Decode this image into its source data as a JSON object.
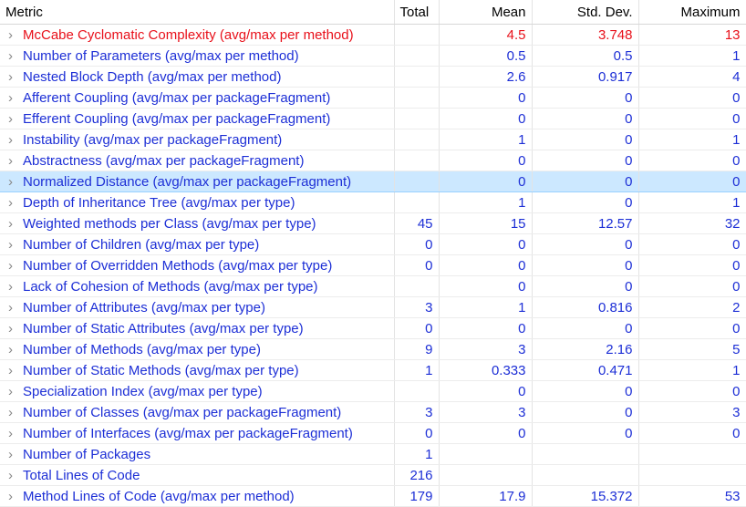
{
  "columns": [
    "Metric",
    "Total",
    "Mean",
    "Std. Dev.",
    "Maximum"
  ],
  "selected_row": 7,
  "rows": [
    {
      "metric": "McCabe Cyclomatic Complexity (avg/max per method)",
      "mean": 4.5,
      "std": 3.748,
      "max": 13,
      "color": "#e8101a"
    },
    {
      "metric": "Number of Parameters (avg/max per method)",
      "mean": 0.5,
      "std": 0.5,
      "max": 1
    },
    {
      "metric": "Nested Block Depth (avg/max per method)",
      "mean": 2.6,
      "std": 0.917,
      "max": 4
    },
    {
      "metric": "Afferent Coupling (avg/max per packageFragment)",
      "mean": 0,
      "std": 0,
      "max": 0
    },
    {
      "metric": "Efferent Coupling (avg/max per packageFragment)",
      "mean": 0,
      "std": 0,
      "max": 0
    },
    {
      "metric": "Instability (avg/max per packageFragment)",
      "mean": 1,
      "std": 0,
      "max": 1
    },
    {
      "metric": "Abstractness (avg/max per packageFragment)",
      "mean": 0,
      "std": 0,
      "max": 0
    },
    {
      "metric": "Normalized Distance (avg/max per packageFragment)",
      "mean": 0,
      "std": 0,
      "max": 0
    },
    {
      "metric": "Depth of Inheritance Tree (avg/max per type)",
      "mean": 1,
      "std": 0,
      "max": 1
    },
    {
      "metric": "Weighted methods per Class (avg/max per type)",
      "total": 45,
      "mean": 15,
      "std": 12.57,
      "max": 32
    },
    {
      "metric": "Number of Children (avg/max per type)",
      "total": 0,
      "mean": 0,
      "std": 0,
      "max": 0
    },
    {
      "metric": "Number of Overridden Methods (avg/max per type)",
      "total": 0,
      "mean": 0,
      "std": 0,
      "max": 0
    },
    {
      "metric": "Lack of Cohesion of Methods (avg/max per type)",
      "mean": 0,
      "std": 0,
      "max": 0
    },
    {
      "metric": "Number of Attributes (avg/max per type)",
      "total": 3,
      "mean": 1,
      "std": 0.816,
      "max": 2
    },
    {
      "metric": "Number of Static Attributes (avg/max per type)",
      "total": 0,
      "mean": 0,
      "std": 0,
      "max": 0
    },
    {
      "metric": "Number of Methods (avg/max per type)",
      "total": 9,
      "mean": 3,
      "std": 2.16,
      "max": 5
    },
    {
      "metric": "Number of Static Methods (avg/max per type)",
      "total": 1,
      "mean": 0.333,
      "std": 0.471,
      "max": 1
    },
    {
      "metric": "Specialization Index (avg/max per type)",
      "mean": 0,
      "std": 0,
      "max": 0
    },
    {
      "metric": "Number of Classes (avg/max per packageFragment)",
      "total": 3,
      "mean": 3,
      "std": 0,
      "max": 3
    },
    {
      "metric": "Number of Interfaces (avg/max per packageFragment)",
      "total": 0,
      "mean": 0,
      "std": 0,
      "max": 0
    },
    {
      "metric": "Number of Packages",
      "total": 1
    },
    {
      "metric": "Total Lines of Code",
      "total": 216
    },
    {
      "metric": "Method Lines of Code (avg/max per method)",
      "total": 179,
      "mean": 17.9,
      "std": 15.372,
      "max": 53
    }
  ]
}
